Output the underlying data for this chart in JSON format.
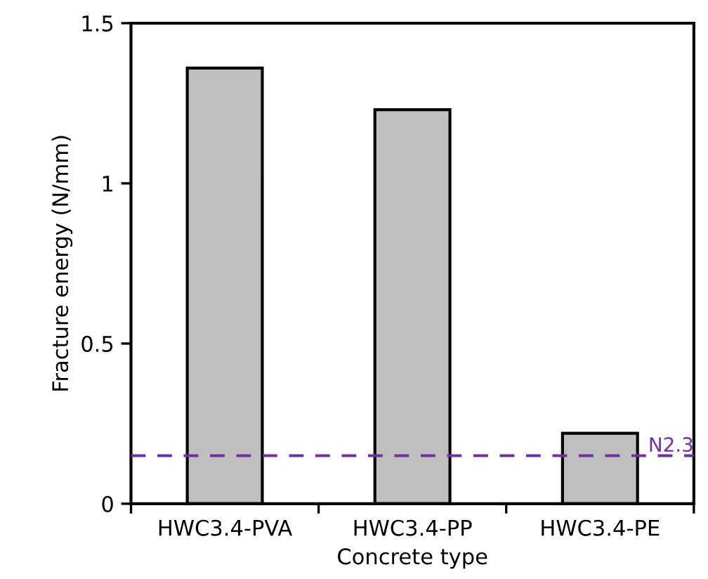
{
  "chart_data": {
    "type": "bar",
    "xlabel": "Concrete type",
    "ylabel": "Fracture energy (N/mm)",
    "categories": [
      "HWC3.4-PVA",
      "HWC3.4-PP",
      "HWC3.4-PE"
    ],
    "values": [
      1.36,
      1.23,
      0.22
    ],
    "color": "#bfbfbf",
    "ylim": [
      0,
      1.5
    ],
    "yticks": [
      0,
      0.5,
      1,
      1.5
    ],
    "grid": false,
    "ref_lines": [
      {
        "axis": "y",
        "value": 0.15,
        "label": "N2.3",
        "color": "#7030a0",
        "line_style": "dashed"
      }
    ]
  }
}
